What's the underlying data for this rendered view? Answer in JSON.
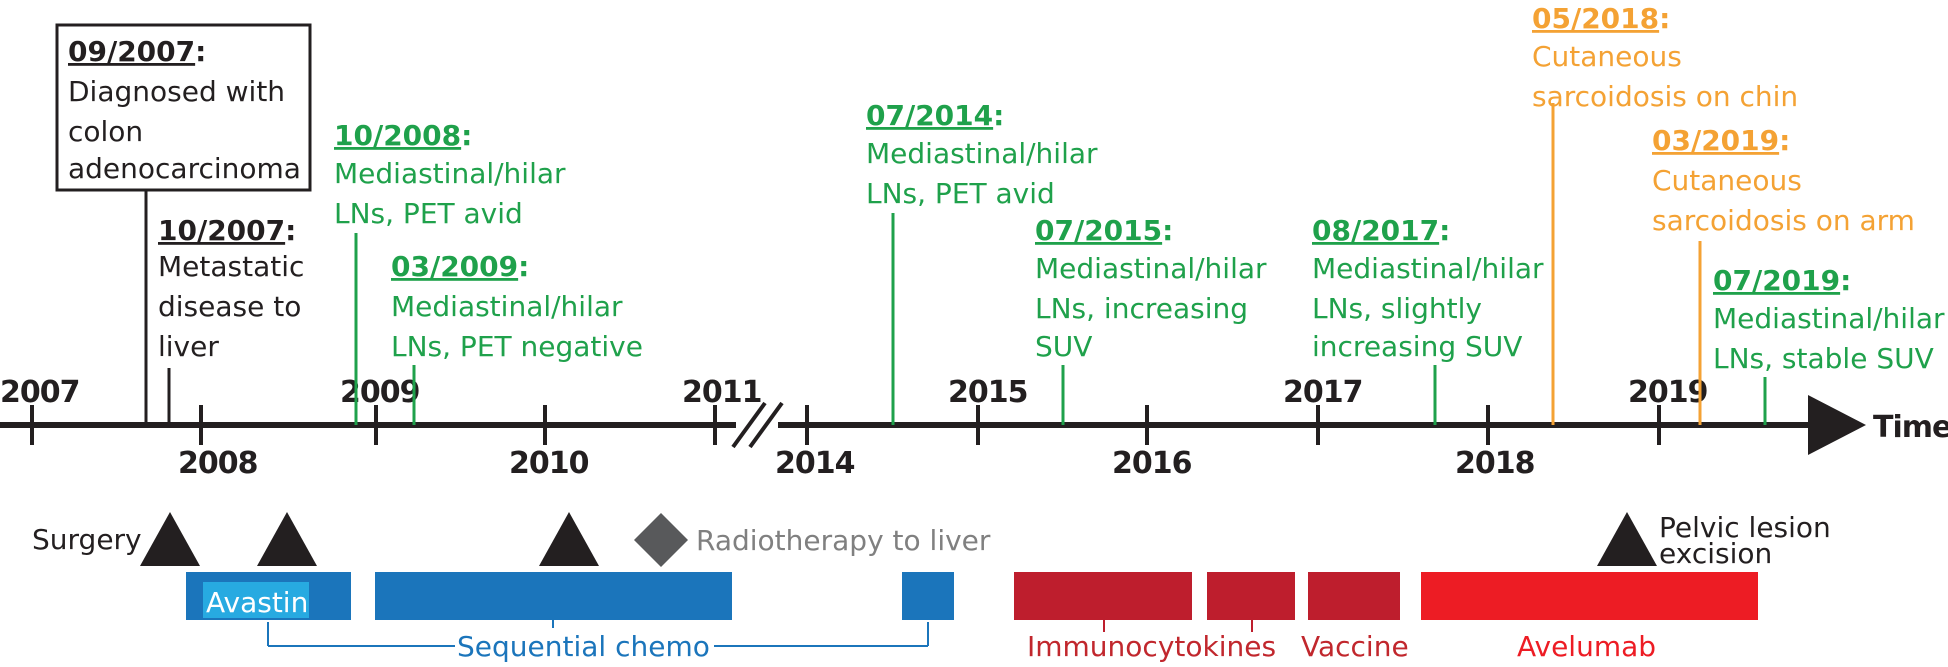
{
  "timeline": {
    "axis_label": "Time",
    "years_above": [
      "2007",
      "2009",
      "2011",
      "2015",
      "2017",
      "2019"
    ],
    "years_below": [
      "2008",
      "2010",
      "2014",
      "2016",
      "2018"
    ]
  },
  "events": [
    {
      "date": "09/2007",
      "lines": [
        "Diagnosed with",
        "colon",
        "adenocarcinoma"
      ],
      "color": "#231f20"
    },
    {
      "date": "10/2007",
      "lines": [
        "Metastatic",
        "disease to",
        "liver"
      ],
      "color": "#231f20"
    },
    {
      "date": "10/2008",
      "lines": [
        "Mediastinal/hilar",
        "LNs, PET avid"
      ],
      "color": "#1fa14b"
    },
    {
      "date": "03/2009",
      "lines": [
        "Mediastinal/hilar",
        "LNs, PET negative"
      ],
      "color": "#1fa14b"
    },
    {
      "date": "07/2014",
      "lines": [
        "Mediastinal/hilar",
        "LNs, PET avid"
      ],
      "color": "#1fa14b"
    },
    {
      "date": "07/2015",
      "lines": [
        "Mediastinal/hilar",
        "LNs, increasing",
        "SUV"
      ],
      "color": "#1fa14b"
    },
    {
      "date": "08/2017",
      "lines": [
        "Mediastinal/hilar",
        "LNs, slightly",
        "increasing SUV"
      ],
      "color": "#1fa14b"
    },
    {
      "date": "05/2018",
      "lines": [
        "Cutaneous",
        "sarcoidosis on chin"
      ],
      "color": "#f4a234"
    },
    {
      "date": "03/2019",
      "lines": [
        "Cutaneous",
        "sarcoidosis on arm"
      ],
      "color": "#f4a234"
    },
    {
      "date": "07/2019",
      "lines": [
        "Mediastinal/hilar",
        "LNs, stable SUV"
      ],
      "color": "#1fa14b"
    }
  ],
  "treatments": {
    "surgery": "Surgery",
    "radiotherapy": "Radiotherapy to liver",
    "pelvic": [
      "Pelvic lesion",
      "excision"
    ],
    "avastin": "Avastin",
    "sequential": "Sequential chemo",
    "immunocytokines": "Immunocytokines",
    "vaccine": "Vaccine",
    "avelumab": "Avelumab"
  },
  "colors": {
    "axis": "#231f20",
    "green": "#1fa14b",
    "orange": "#f4a234",
    "chemo_blue": "#1b75bb",
    "avastin_label_bg": "#27aae1",
    "immuno_red": "#be1e2d",
    "avelumab_red": "#ed1c24",
    "radiotherapy_gray": "#58595b"
  }
}
